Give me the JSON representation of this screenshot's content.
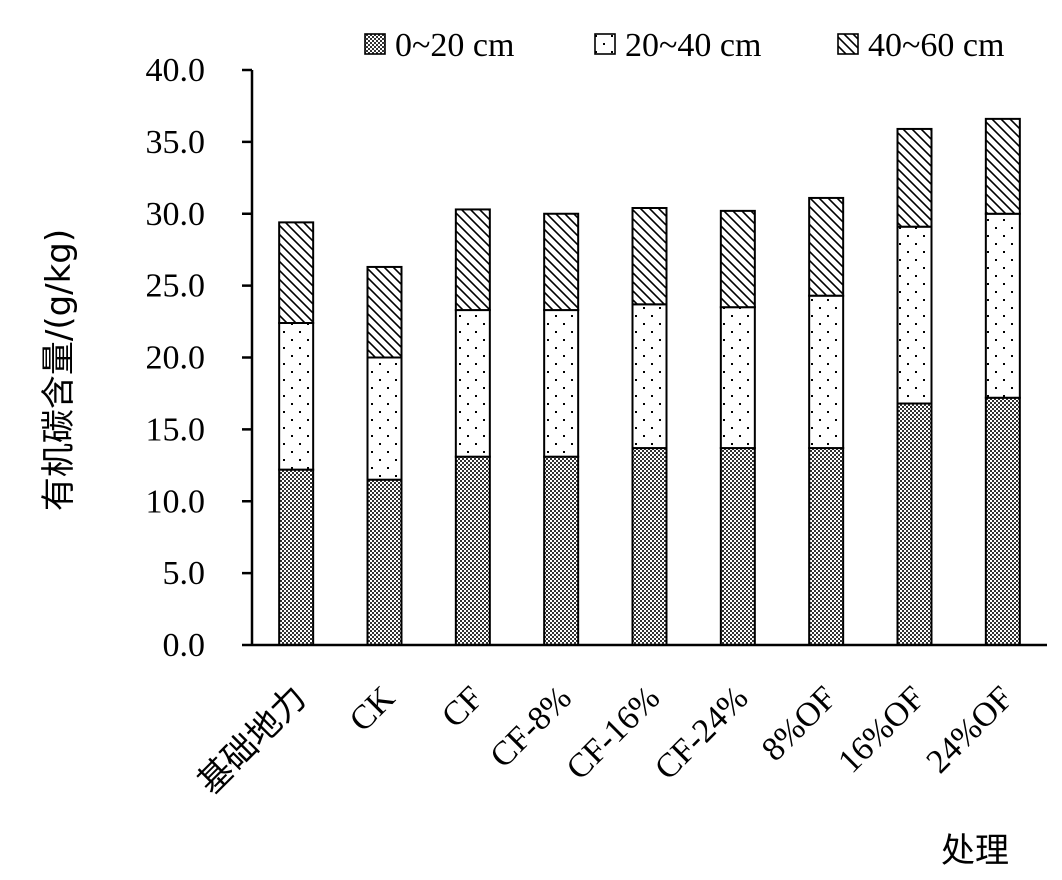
{
  "chart_data": {
    "type": "bar",
    "stacked": true,
    "categories": [
      "基础地力",
      "CK",
      "CF",
      "CF-8%",
      "CF-16%",
      "CF-24%",
      "8%OF",
      "16%OF",
      "24%OF"
    ],
    "series": [
      {
        "name": "0~20 cm",
        "pattern": "crosshatch",
        "values": [
          12.2,
          11.5,
          13.1,
          13.1,
          13.7,
          13.7,
          13.7,
          16.8,
          17.2
        ]
      },
      {
        "name": "20~40 cm",
        "pattern": "dots",
        "values": [
          10.2,
          8.5,
          10.2,
          10.2,
          10.0,
          9.8,
          10.6,
          12.3,
          12.8
        ]
      },
      {
        "name": "40~60 cm",
        "pattern": "diagonal",
        "values": [
          7.0,
          6.3,
          7.0,
          6.7,
          6.7,
          6.7,
          6.8,
          6.8,
          6.6
        ]
      }
    ],
    "xlabel": "处理",
    "ylabel": "有机碳含量/(g/kg)",
    "ylim": [
      0,
      40
    ],
    "yticks": [
      "0.0",
      "5.0",
      "10.0",
      "15.0",
      "20.0",
      "25.0",
      "30.0",
      "35.0",
      "40.0"
    ],
    "ytick_step": 5,
    "grid": false,
    "legend_position": "top-right"
  }
}
